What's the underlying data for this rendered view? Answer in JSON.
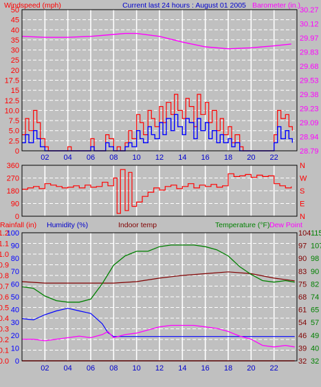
{
  "header": {
    "windspeed_label": "Windspeed (mph)",
    "title": "Current last 24 hours : August 01 2005",
    "barometer_label": "Barometer (in.)"
  },
  "colors": {
    "panel": "#c0c0c0",
    "grid": "#ffffff",
    "frame": "#000000",
    "wind_gust": "#ff0000",
    "wind_avg": "#0000ff",
    "barometer": "#ff00ff",
    "wind_dir": "#ff0000",
    "temperature": "#008000",
    "dew_point": "#ff00ff",
    "humidity": "#0000ff",
    "indoor": "#800000",
    "rain": "#ff0000"
  },
  "x_ticks": [
    "02",
    "04",
    "06",
    "08",
    "10",
    "12",
    "14",
    "16",
    "18",
    "20",
    "22"
  ],
  "chart_data": [
    {
      "type": "line",
      "name": "wind-barometer",
      "x_range": [
        0,
        24
      ],
      "left_axis": {
        "label": "Windspeed (mph)",
        "ticks": [
          "0",
          "2.5",
          "5.0",
          "7.5",
          "10.0",
          "12.5",
          "15",
          "17.5",
          "20",
          "25",
          "30",
          "35",
          "40",
          "45",
          "50"
        ],
        "ylim": [
          0,
          50
        ]
      },
      "right_axis": {
        "label": "Barometer (in.)",
        "ticks": [
          "28.79",
          "28.94",
          "29.09",
          "29.23",
          "29.38",
          "29.53",
          "29.68",
          "29.83",
          "29.97",
          "30.12",
          "30.27"
        ],
        "ylim": [
          28.79,
          30.27
        ]
      },
      "series": [
        {
          "role": "barometer",
          "x": [
            0,
            2,
            4,
            6,
            8,
            9,
            10,
            12,
            14,
            16,
            18,
            20,
            22,
            23.5
          ],
          "y": [
            29.99,
            29.98,
            29.98,
            29.99,
            30.01,
            30.02,
            30.02,
            29.99,
            29.93,
            29.88,
            29.86,
            29.87,
            29.89,
            29.91
          ]
        },
        {
          "role": "gust",
          "x": [
            0,
            0.3,
            0.6,
            1,
            1.3,
            1.6,
            2,
            2.3,
            2.6,
            3,
            3.3,
            3.6,
            4,
            4.3,
            4.6,
            5,
            5.3,
            5.6,
            6,
            6.3,
            6.6,
            7,
            7.3,
            7.6,
            8,
            8.3,
            8.6,
            9,
            9.3,
            9.6,
            10,
            10.3,
            10.6,
            11,
            11.3,
            11.6,
            12,
            12.3,
            12.6,
            13,
            13.3,
            13.6,
            14,
            14.3,
            14.6,
            15,
            15.3,
            15.6,
            16,
            16.3,
            16.6,
            17,
            17.3,
            17.6,
            18,
            18.3,
            18.6,
            19,
            19.3,
            19.6,
            20,
            20.3,
            20.6,
            21,
            21.3,
            21.6,
            22,
            22.3,
            22.6,
            23,
            23.3,
            23.6
          ],
          "y": [
            4,
            8,
            5,
            10,
            7,
            3,
            1,
            0,
            0,
            0,
            0,
            0,
            1,
            0,
            0,
            0,
            0,
            0,
            3,
            0,
            0,
            0,
            4,
            3,
            0,
            1,
            0,
            2,
            5,
            3,
            9,
            7,
            4,
            10,
            8,
            6,
            11,
            7,
            12,
            9,
            14,
            10,
            8,
            13,
            11,
            6,
            14,
            9,
            12,
            7,
            10,
            5,
            8,
            4,
            6,
            2,
            4,
            1,
            0,
            0,
            0,
            0,
            0,
            0,
            0,
            0,
            4,
            10,
            8,
            9,
            6,
            5
          ]
        },
        {
          "role": "average",
          "x": [
            0,
            0.3,
            0.6,
            1,
            1.3,
            1.6,
            2,
            2.3,
            2.6,
            3,
            3.3,
            3.6,
            4,
            4.3,
            4.6,
            5,
            5.3,
            5.6,
            6,
            6.3,
            6.6,
            7,
            7.3,
            7.6,
            8,
            8.3,
            8.6,
            9,
            9.3,
            9.6,
            10,
            10.3,
            10.6,
            11,
            11.3,
            11.6,
            12,
            12.3,
            12.6,
            13,
            13.3,
            13.6,
            14,
            14.3,
            14.6,
            15,
            15.3,
            15.6,
            16,
            16.3,
            16.6,
            17,
            17.3,
            17.6,
            18,
            18.3,
            18.6,
            19,
            19.3,
            19.6,
            20,
            20.3,
            20.6,
            21,
            21.3,
            21.6,
            22,
            22.3,
            22.6,
            23,
            23.3,
            23.6
          ],
          "y": [
            2,
            4,
            2,
            5,
            3,
            1,
            0,
            0,
            0,
            0,
            0,
            0,
            0,
            0,
            0,
            0,
            0,
            0,
            1,
            0,
            0,
            0,
            2,
            1,
            0,
            0,
            0,
            1,
            2,
            1,
            5,
            3,
            2,
            6,
            4,
            3,
            7,
            4,
            8,
            5,
            9,
            6,
            4,
            8,
            7,
            3,
            8,
            5,
            7,
            3,
            5,
            2,
            4,
            2,
            3,
            1,
            2,
            0,
            0,
            0,
            0,
            0,
            0,
            0,
            0,
            0,
            2,
            6,
            3,
            5,
            3,
            2
          ]
        }
      ]
    },
    {
      "type": "line",
      "name": "wind-direction",
      "x_range": [
        0,
        24
      ],
      "left_axis": {
        "ticks": [
          "0",
          "90",
          "180",
          "270",
          "360"
        ],
        "ylim": [
          0,
          360
        ]
      },
      "right_axis": {
        "ticks": [
          "N",
          "E",
          "S",
          "W",
          "N"
        ]
      },
      "series": [
        {
          "role": "direction",
          "x": [
            0,
            0.5,
            1,
            1.5,
            2,
            2.5,
            3,
            3.5,
            4,
            4.5,
            5,
            5.5,
            6,
            6.5,
            7,
            7.5,
            8,
            8.3,
            8.6,
            9,
            9.3,
            9.6,
            10,
            10.5,
            11,
            11.5,
            12,
            12.5,
            13,
            13.5,
            14,
            14.5,
            15,
            15.5,
            16,
            16.5,
            17,
            17.5,
            18,
            18.5,
            19,
            19.5,
            20,
            20.5,
            21,
            21.5,
            22,
            22.5,
            23,
            23.5
          ],
          "y": [
            190,
            200,
            210,
            195,
            230,
            220,
            210,
            200,
            205,
            215,
            200,
            220,
            205,
            210,
            240,
            215,
            270,
            20,
            330,
            40,
            310,
            70,
            100,
            140,
            170,
            200,
            185,
            210,
            220,
            195,
            210,
            230,
            200,
            220,
            210,
            225,
            205,
            215,
            300,
            280,
            285,
            295,
            275,
            290,
            280,
            285,
            230,
            215,
            200,
            210
          ]
        }
      ]
    },
    {
      "type": "line",
      "name": "temperature-humidity",
      "x_range": [
        0,
        24
      ],
      "headers": [
        "Rainfall (in)",
        "Humidity (%)",
        "Indoor temp",
        "Temperature (°F)",
        "Dew Point"
      ],
      "axis_rain": {
        "ticks": [
          "0.0",
          "0.1",
          "0.2",
          "0.3",
          "0.4",
          "0.5",
          "0.6",
          "0.7",
          "0.8",
          "0.9",
          "1.0",
          "1.1",
          "1.2"
        ],
        "ylim": [
          0,
          1.2
        ]
      },
      "axis_humidity": {
        "ticks": [
          "0",
          "10",
          "20",
          "30",
          "40",
          "50",
          "60",
          "70",
          "80",
          "90",
          "100"
        ],
        "ylim": [
          0,
          100
        ]
      },
      "axis_indoor": {
        "ticks": [
          "32",
          "39",
          "46",
          "54",
          "61",
          "68",
          "75",
          "83",
          "90",
          "97",
          "104"
        ],
        "ylim": [
          32,
          104
        ]
      },
      "axis_temperature": {
        "ticks": [
          "32",
          "40",
          "49",
          "57",
          "65",
          "74",
          "82",
          "90",
          "98",
          "107",
          "115"
        ],
        "ylim": [
          32,
          115
        ]
      },
      "series": [
        {
          "role": "temperature",
          "x": [
            0,
            1,
            2,
            3,
            4,
            5,
            6,
            7,
            8,
            9,
            10,
            11,
            12,
            13,
            14,
            15,
            16,
            17,
            18,
            19,
            20,
            21,
            22,
            23,
            23.8
          ],
          "y": [
            80,
            79,
            74,
            71,
            70,
            70,
            72,
            82,
            94,
            100,
            103,
            103,
            106,
            107,
            107,
            107,
            106,
            104,
            100,
            93,
            88,
            84,
            83,
            84,
            83
          ]
        },
        {
          "role": "dew-point",
          "x": [
            0,
            1,
            2,
            3,
            4,
            5,
            6,
            7,
            7.5,
            8,
            9,
            10,
            11,
            12,
            13,
            14,
            15,
            16,
            17,
            18,
            19,
            20,
            21,
            22,
            23,
            23.8
          ],
          "y": [
            46,
            46,
            45,
            46,
            47,
            48,
            47,
            49,
            51,
            47,
            49,
            50,
            52,
            54,
            55,
            55,
            55,
            54,
            53,
            51,
            48,
            46,
            42,
            41,
            42,
            41
          ]
        },
        {
          "role": "humidity",
          "x": [
            0,
            1,
            2,
            3,
            4,
            5,
            6,
            7,
            7.5,
            8,
            10,
            12,
            14,
            16,
            18,
            20,
            22,
            23,
            23.8
          ],
          "y": [
            33,
            32,
            36,
            39,
            41,
            39,
            37,
            29,
            22,
            19,
            19,
            19,
            19,
            19,
            19,
            19,
            19,
            19,
            19
          ]
        },
        {
          "role": "indoor",
          "x": [
            0,
            2,
            4,
            6,
            8,
            10,
            12,
            14,
            16,
            18,
            20,
            22,
            23.8
          ],
          "y": [
            76.5,
            75.7,
            75.7,
            75.7,
            75.7,
            76.5,
            78.5,
            80,
            81,
            82,
            81,
            78.5,
            77
          ]
        },
        {
          "role": "rainfall",
          "x": [
            0,
            23.8
          ],
          "y": [
            0,
            0
          ]
        }
      ]
    }
  ]
}
